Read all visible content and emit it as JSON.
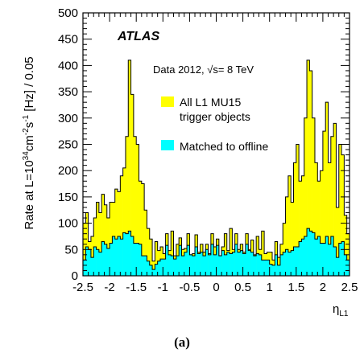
{
  "chart_data": {
    "type": "area",
    "ylabel_main": "Rate at L=10",
    "ylabel_exp1": "34",
    "ylabel_mid": "cm",
    "ylabel_exp2": "-2",
    "ylabel_s": "s",
    "ylabel_exp3": "-1",
    "ylabel_tail": " [Hz] / 0.05",
    "xlabel": "η",
    "xlabel_sub": "L1",
    "xlim": [
      -2.5,
      2.5
    ],
    "ylim": [
      0,
      500
    ],
    "bin_width": 0.05,
    "x_ticks": [
      "-2.5",
      "-2",
      "-1.5",
      "-1",
      "-0.5",
      "0",
      "0.5",
      "1",
      "1.5",
      "2",
      "2.5"
    ],
    "y_ticks": [
      "0",
      "50",
      "100",
      "150",
      "200",
      "250",
      "300",
      "350",
      "400",
      "450",
      "500"
    ],
    "series": [
      {
        "name": "All L1 MU15 trigger objects",
        "color": "#ffff00",
        "values": [
          100,
          120,
          65,
          75,
          110,
          140,
          120,
          155,
          135,
          110,
          140,
          140,
          165,
          160,
          190,
          205,
          265,
          410,
          345,
          265,
          250,
          180,
          175,
          125,
          90,
          70,
          28,
          65,
          48,
          55,
          42,
          80,
          48,
          85,
          38,
          60,
          72,
          50,
          52,
          80,
          40,
          42,
          78,
          45,
          60,
          45,
          60,
          42,
          80,
          55,
          70,
          38,
          55,
          80,
          48,
          90,
          50,
          80,
          50,
          60,
          45,
          80,
          50,
          68,
          40,
          75,
          50,
          85,
          42,
          45,
          45,
          30,
          65,
          35,
          60,
          100,
          150,
          190,
          140,
          215,
          250,
          180,
          190,
          300,
          410,
          390,
          300,
          215,
          180,
          200,
          275,
          330,
          215,
          265,
          290,
          130,
          250,
          230,
          115,
          80
        ]
      },
      {
        "name": "Matched to offline",
        "color": "#00ffff",
        "values": [
          30,
          55,
          50,
          35,
          55,
          50,
          45,
          65,
          60,
          52,
          62,
          75,
          70,
          75,
          70,
          82,
          80,
          85,
          75,
          62,
          62,
          60,
          38,
          38,
          28,
          20,
          12,
          22,
          28,
          32,
          32,
          58,
          40,
          38,
          32,
          38,
          58,
          38,
          45,
          58,
          40,
          38,
          55,
          42,
          45,
          38,
          50,
          40,
          60,
          40,
          58,
          38,
          48,
          40,
          45,
          42,
          45,
          60,
          45,
          48,
          42,
          60,
          48,
          45,
          38,
          42,
          40,
          30,
          30,
          30,
          22,
          20,
          40,
          20,
          40,
          45,
          50,
          45,
          48,
          55,
          55,
          65,
          70,
          75,
          90,
          85,
          82,
          70,
          75,
          62,
          62,
          75,
          60,
          75,
          55,
          35,
          62,
          65,
          40,
          30
        ]
      }
    ],
    "legend": [
      "All L1 MU15",
      "trigger objects",
      "Matched to offline"
    ],
    "legend_position": "top-right",
    "annotations": {
      "experiment": "ATLAS",
      "data_label": "Data 2012, √s= 8 TeV"
    },
    "grid": false
  },
  "caption": "(a)"
}
